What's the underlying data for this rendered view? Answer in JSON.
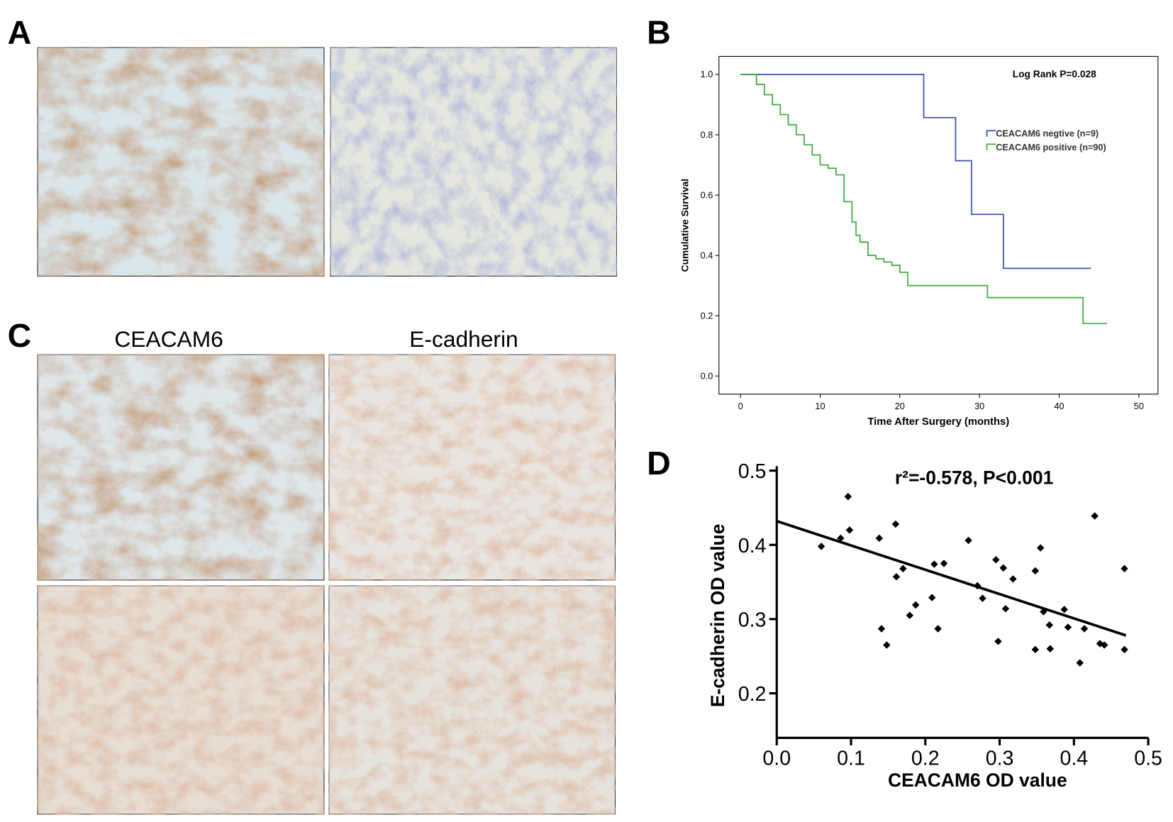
{
  "panel_labels": [
    "A",
    "B",
    "C",
    "D"
  ],
  "column_labels": [
    "CEACAM6",
    "E-cadherin"
  ],
  "chart_data": [
    {
      "type": "line",
      "step": true,
      "annotation": "Log Rank P=0.028",
      "x_label": "Time After Surgery (months)",
      "y_label": "Cumulative Survival",
      "xlim": [
        -2.7,
        52.4
      ],
      "ylim": [
        -0.06,
        1.06
      ],
      "xticks": [
        0,
        10,
        20,
        30,
        40,
        50
      ],
      "yticks": [
        {
          "value": 0,
          "label": "0.0"
        },
        0.2,
        0.4,
        0.6,
        0.8,
        {
          "value": 1,
          "label": "1.0"
        }
      ],
      "series": [
        {
          "name": "CEACAM6 negtive (n=9)",
          "color": "#3a4fb0",
          "x": [
            0,
            23,
            27,
            29,
            33,
            44
          ],
          "values": [
            1,
            0.857,
            0.714,
            0.536,
            0.357,
            0.357
          ]
        },
        {
          "name": "CEACAM6 positive (n=90)",
          "color": "#3aa83a",
          "x": [
            0,
            2,
            3,
            4,
            5,
            6,
            7,
            8,
            9,
            10,
            11,
            12,
            13,
            14,
            14.5,
            15,
            16,
            17,
            18,
            19,
            20,
            21,
            31,
            43,
            46
          ],
          "values": [
            1,
            0.967,
            0.933,
            0.9,
            0.867,
            0.833,
            0.8,
            0.767,
            0.733,
            0.7,
            0.689,
            0.667,
            0.578,
            0.511,
            0.467,
            0.444,
            0.4,
            0.389,
            0.378,
            0.367,
            0.344,
            0.3,
            0.26,
            0.174,
            0.174
          ]
        }
      ]
    },
    {
      "type": "scatter",
      "title": "r²=-0.578, P<0.001",
      "x_label": "CEACAM6 OD value",
      "y_label": "E-cadherin OD value",
      "xlim": [
        0,
        0.5
      ],
      "ylim": [
        0.14,
        0.5
      ],
      "xticks": [
        {
          "value": 0,
          "label": "0.0"
        },
        0.1,
        0.2,
        0.3,
        0.4,
        0.5
      ],
      "yticks": [
        0.2,
        0.3,
        0.4,
        0.5
      ],
      "color": "#000000",
      "x": [
        0.06,
        0.086,
        0.096,
        0.098,
        0.138,
        0.141,
        0.148,
        0.16,
        0.161,
        0.17,
        0.179,
        0.187,
        0.209,
        0.212,
        0.217,
        0.225,
        0.258,
        0.27,
        0.277,
        0.295,
        0.298,
        0.305,
        0.308,
        0.318,
        0.348,
        0.348,
        0.355,
        0.359,
        0.367,
        0.368,
        0.387,
        0.392,
        0.408,
        0.414,
        0.428,
        0.435,
        0.441,
        0.468,
        0.468
      ],
      "values": [
        0.398,
        0.409,
        0.465,
        0.42,
        0.409,
        0.287,
        0.265,
        0.428,
        0.357,
        0.368,
        0.305,
        0.319,
        0.329,
        0.374,
        0.287,
        0.375,
        0.406,
        0.345,
        0.328,
        0.38,
        0.27,
        0.369,
        0.314,
        0.354,
        0.365,
        0.259,
        0.396,
        0.31,
        0.292,
        0.26,
        0.313,
        0.289,
        0.241,
        0.287,
        0.439,
        0.267,
        0.265,
        0.368,
        0.259
      ],
      "fit_line": {
        "x": [
          0,
          0.47
        ],
        "values": [
          0.432,
          0.278
        ]
      }
    }
  ]
}
